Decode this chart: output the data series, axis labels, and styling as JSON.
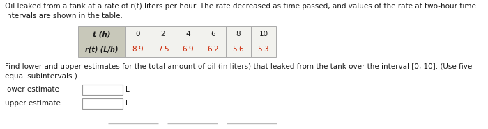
{
  "title_text": "Oil leaked from a tank at a rate of r(t) liters per hour. The rate decreased as time passed, and values of the rate at two-hour time\nintervals are shown in the table.",
  "t_label": "t (h)",
  "r_label": "r(t) (L/h)",
  "t_values": [
    "0",
    "2",
    "4",
    "6",
    "8",
    "10"
  ],
  "r_values": [
    "8.9",
    "7.5",
    "6.9",
    "6.2",
    "5.6",
    "5.3"
  ],
  "question_text": "Find lower and upper estimates for the total amount of oil (in liters) that leaked from the tank over the interval [0, 10]. (Use five\nequal subintervals.)",
  "lower_label": "lower estimate",
  "upper_label": "upper estimate",
  "unit": "L",
  "bg_color": "#ffffff",
  "table_header_bg": "#c8c8ba",
  "table_cell_bg": "#f2f2ee",
  "table_border_color": "#aaaaaa",
  "text_color": "#1a1a1a",
  "r_value_color": "#cc2200",
  "font_size": 7.5,
  "input_box_color": "#ffffff",
  "bottom_line_color": "#bbbbbb"
}
